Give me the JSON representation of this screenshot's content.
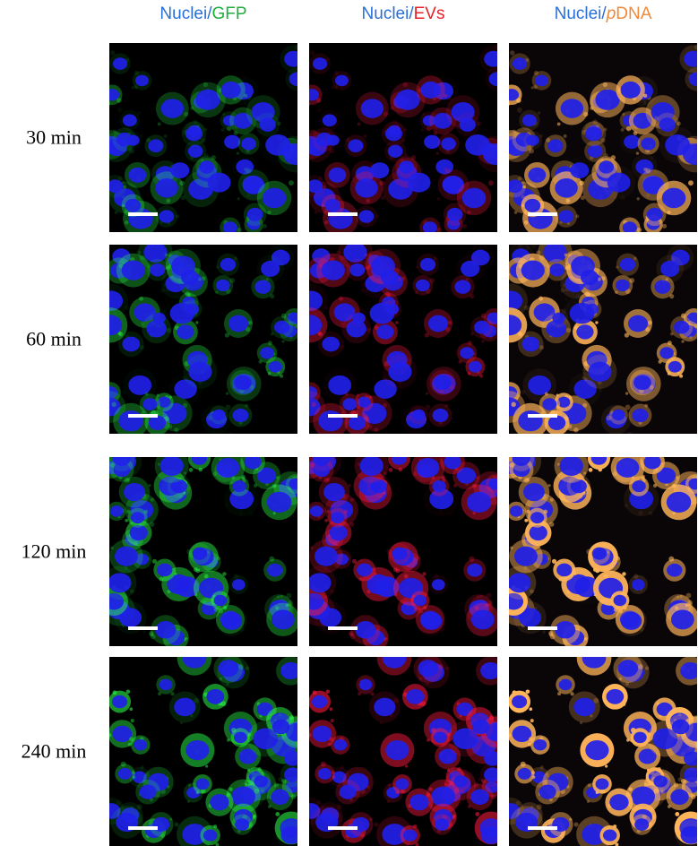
{
  "columns": [
    {
      "parts": [
        {
          "text": "Nuclei/",
          "color": "#2a6fd6",
          "italic": false
        },
        {
          "text": "GFP",
          "color": "#1fae3c",
          "italic": false
        }
      ],
      "stain_color": "#2bff4a"
    },
    {
      "parts": [
        {
          "text": "Nuclei/",
          "color": "#2a6fd6",
          "italic": false
        },
        {
          "text": "EVs",
          "color": "#e8202a",
          "italic": false
        }
      ],
      "stain_color": "#ff1a40"
    },
    {
      "parts": [
        {
          "text": "Nuclei/",
          "color": "#2a6fd6",
          "italic": false
        },
        {
          "text": "p",
          "color": "#f08a3c",
          "italic": true
        },
        {
          "text": "DNA",
          "color": "#f08a3c",
          "italic": false
        }
      ],
      "stain_color": "#ffb45a"
    }
  ],
  "rows": [
    "30 min",
    "60 min",
    "120 min",
    "240 min"
  ]
}
